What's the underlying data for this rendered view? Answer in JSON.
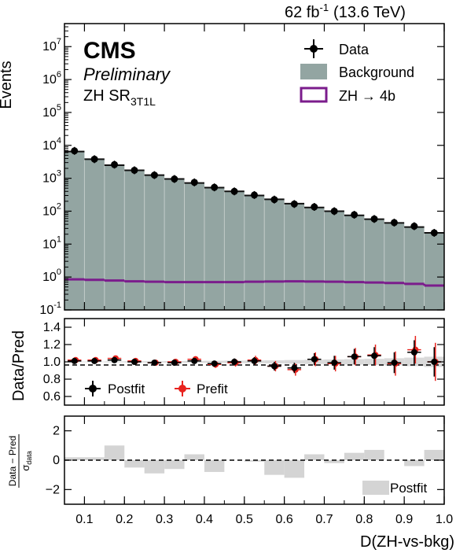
{
  "header": {
    "lumi_text": "62 fb",
    "lumi_exp": "-1",
    "energy_text": "(13.6 TeV)"
  },
  "labels": {
    "cms": "CMS",
    "preliminary": "Preliminary",
    "region_main": "ZH SR",
    "region_sub": "3T1L"
  },
  "axes": {
    "top_ylabel": "Events",
    "ratio_ylabel": "Data/Pred",
    "pull_ylabel_num": "Data − Pred",
    "pull_ylabel_den": "σ",
    "pull_ylabel_den_sub": "data",
    "xlabel": "D(ZH-vs-bkg)"
  },
  "legend_top": {
    "data": "Data",
    "background": "Background",
    "signal": "ZH → 4b"
  },
  "legend_ratio": {
    "postfit": "Postfit",
    "prefit": "Prefit"
  },
  "legend_pull": {
    "postfit": "Postfit"
  },
  "colors": {
    "background_fill": "#93a5a2",
    "signal_line": "#7b1c8c",
    "prefit": "#e8231e",
    "postfit": "#000000",
    "pull_fill": "#d4d4d4",
    "ratio_band": "#d9d9d9"
  },
  "chart_data": {
    "type": "bar",
    "x_edges": [
      0.05,
      0.1,
      0.15,
      0.2,
      0.25,
      0.3,
      0.35,
      0.4,
      0.45,
      0.5,
      0.55,
      0.6,
      0.65,
      0.7,
      0.75,
      0.8,
      0.85,
      0.9,
      0.95,
      1.0
    ],
    "x_ticks": [
      "0.1",
      "0.2",
      "0.3",
      "0.4",
      "0.5",
      "0.6",
      "0.7",
      "0.8",
      "0.9",
      "1.0"
    ],
    "xlim": [
      0.05,
      1.0
    ],
    "main": {
      "yscale": "log",
      "ylim": [
        0.1,
        50000000
      ],
      "y_ticks": [
        {
          "base": "10",
          "exp": "-1"
        },
        {
          "base": "10",
          "exp": "0"
        },
        {
          "base": "10",
          "exp": "1"
        },
        {
          "base": "10",
          "exp": "2"
        },
        {
          "base": "10",
          "exp": "3"
        },
        {
          "base": "10",
          "exp": "4"
        },
        {
          "base": "10",
          "exp": "5"
        },
        {
          "base": "10",
          "exp": "6"
        },
        {
          "base": "10",
          "exp": "7"
        }
      ],
      "background": [
        6500,
        3800,
        2500,
        1750,
        1250,
        950,
        720,
        520,
        400,
        300,
        230,
        170,
        130,
        100,
        75,
        57,
        44,
        33,
        22
      ],
      "data": [
        6800,
        3800,
        2600,
        1750,
        1250,
        950,
        750,
        530,
        400,
        310,
        225,
        165,
        135,
        100,
        78,
        58,
        45,
        35,
        22
      ],
      "signal": [
        0.85,
        0.82,
        0.78,
        0.74,
        0.72,
        0.7,
        0.7,
        0.7,
        0.7,
        0.72,
        0.73,
        0.74,
        0.73,
        0.72,
        0.7,
        0.68,
        0.66,
        0.62,
        0.55
      ]
    },
    "ratio": {
      "ylim": [
        0.5,
        1.5
      ],
      "y_ticks": [
        "0.6",
        "0.8",
        "1.0",
        "1.2",
        "1.4"
      ],
      "postfit": [
        1.01,
        1.01,
        1.02,
        1.0,
        0.99,
        0.99,
        1.01,
        0.98,
        1.0,
        1.01,
        0.95,
        0.93,
        1.03,
        0.99,
        1.06,
        1.07,
        0.99,
        1.11,
        1.0
      ],
      "prefit": [
        1.02,
        1.02,
        1.04,
        1.01,
        0.99,
        1.0,
        1.03,
        0.97,
        0.99,
        1.02,
        0.95,
        0.91,
        1.03,
        0.98,
        1.06,
        1.08,
        0.98,
        1.14,
        1.0
      ],
      "postfit_err": [
        0.01,
        0.01,
        0.015,
        0.02,
        0.02,
        0.025,
        0.03,
        0.035,
        0.04,
        0.045,
        0.05,
        0.06,
        0.07,
        0.08,
        0.09,
        0.1,
        0.12,
        0.14,
        0.17
      ],
      "prefit_err": [
        0.015,
        0.015,
        0.02,
        0.025,
        0.025,
        0.03,
        0.035,
        0.04,
        0.045,
        0.05,
        0.06,
        0.07,
        0.08,
        0.09,
        0.1,
        0.12,
        0.14,
        0.16,
        0.22
      ]
    },
    "pull": {
      "ylim": [
        -3,
        3
      ],
      "y_ticks": [
        "−2",
        "0",
        "2"
      ],
      "values": [
        0.2,
        0.2,
        1.0,
        -0.5,
        -0.9,
        -0.6,
        0.4,
        -0.8,
        0.0,
        -0.1,
        -1.0,
        -1.2,
        0.4,
        -0.2,
        0.5,
        0.7,
        0.0,
        -0.4,
        0.7
      ]
    }
  }
}
